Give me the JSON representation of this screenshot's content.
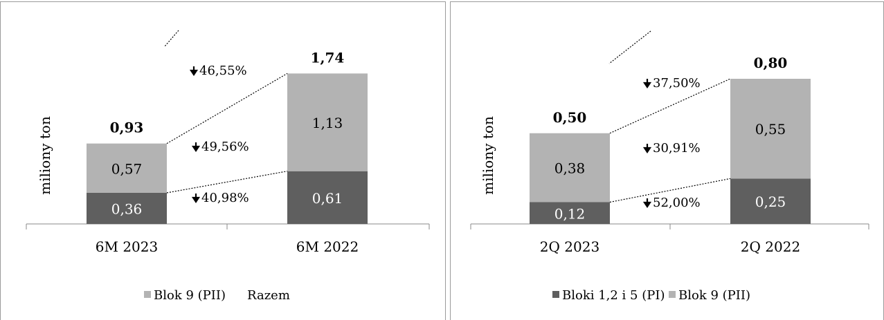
{
  "colors": {
    "dark": "#5f5f5f",
    "light": "#b3b3b3",
    "border": "#9a9a9a",
    "axis": "#888888",
    "text": "#000000",
    "bar_text": "#ffffff"
  },
  "chart_data": [
    {
      "type": "bar",
      "stacked": true,
      "xlabel": "",
      "ylabel": "miliony ton",
      "categories": [
        "6M 2023",
        "6M 2022"
      ],
      "series": [
        {
          "name": "",
          "values": [
            0.36,
            0.61
          ],
          "labels": [
            "0,36",
            "0,61"
          ],
          "color": "#5f5f5f"
        },
        {
          "name": "Blok 9 (PII)",
          "values": [
            0.57,
            1.13
          ],
          "labels": [
            "0,57",
            "1,13"
          ],
          "color": "#b3b3b3"
        }
      ],
      "totals": [
        0.93,
        1.74
      ],
      "total_labels": [
        "0,93",
        "1,74"
      ],
      "legend": [
        "Blok 9 (PII)",
        "Razem"
      ],
      "legend_position": "bottom",
      "ylim": [
        0,
        2.35
      ],
      "annotations": {
        "total": "46,55%",
        "top": "49,56%",
        "bottom": "40,98%"
      }
    },
    {
      "type": "bar",
      "stacked": true,
      "xlabel": "",
      "ylabel": "miliony ton",
      "categories": [
        "2Q 2023",
        "2Q 2022"
      ],
      "series": [
        {
          "name": "Bloki 1,2 i 5 (PI)",
          "values": [
            0.12,
            0.25
          ],
          "labels": [
            "0,12",
            "0,25"
          ],
          "color": "#5f5f5f"
        },
        {
          "name": "Blok 9 (PII)",
          "values": [
            0.38,
            0.55
          ],
          "labels": [
            "0,38",
            "0,55"
          ],
          "color": "#b3b3b3"
        }
      ],
      "totals": [
        0.5,
        0.8
      ],
      "total_labels": [
        "0,50",
        "0,80"
      ],
      "legend": [
        "Bloki 1,2 i 5 (PI)",
        "Blok 9 (PII)"
      ],
      "legend_position": "bottom",
      "ylim": [
        0,
        1.12
      ],
      "annotations": {
        "total": "37,50%",
        "top": "30,91%",
        "bottom": "52,00%"
      }
    }
  ]
}
